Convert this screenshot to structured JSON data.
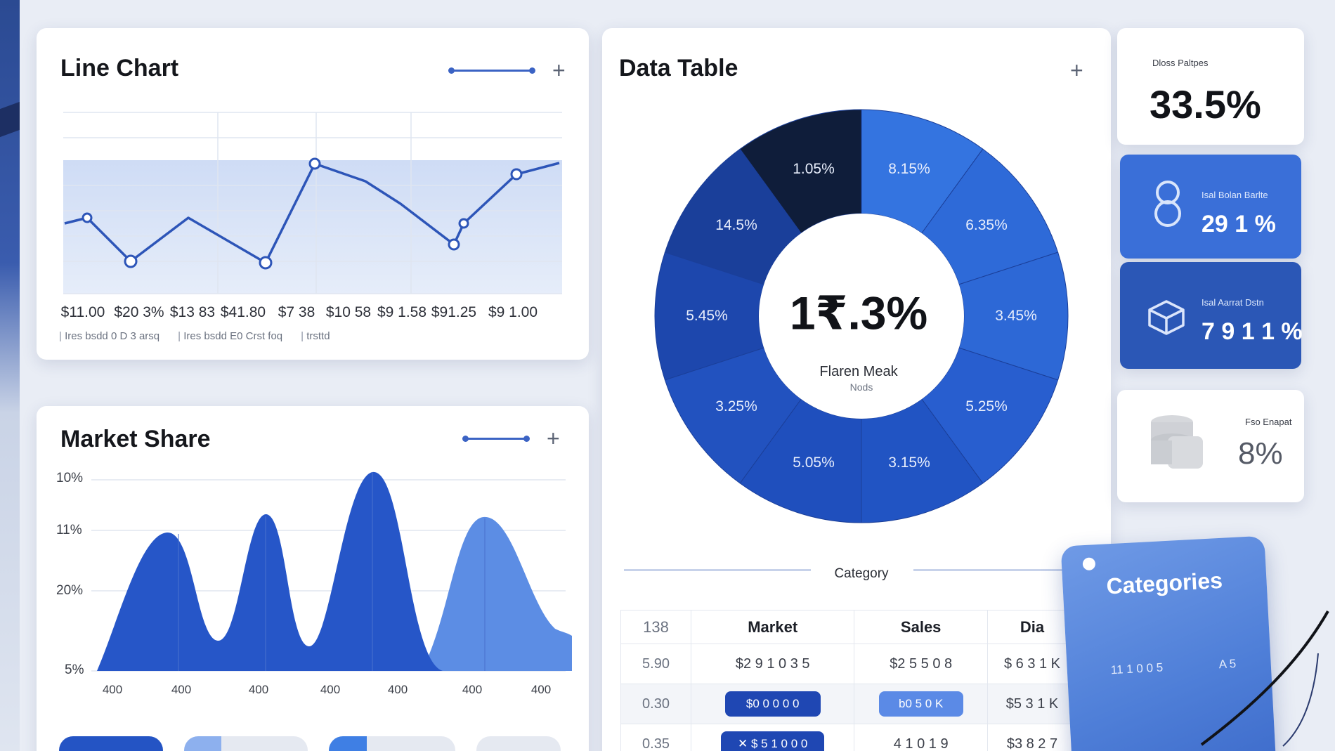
{
  "line_chart": {
    "title": "Line Chart",
    "x_labels": [
      "$11.00",
      "$20 3%",
      "$13 83",
      "$41.80",
      "$7 38",
      "$10 58",
      "$9 1.58",
      "$91.25",
      "$9 1.00"
    ],
    "legend": [
      "Ires bsdd 0 D 3 arsq",
      "Ires bsdd E0 Crst foq",
      "trsttd"
    ]
  },
  "market_share": {
    "title": "Market Share",
    "y_labels": [
      "10%",
      "11%",
      "20%",
      "5%"
    ],
    "x_labels": [
      "400",
      "400",
      "400",
      "400",
      "400",
      "400",
      "400"
    ]
  },
  "data_table": {
    "title": "Data Table",
    "donut_center_value": "1₹.3%",
    "donut_center_label": "Flaren Meak",
    "donut_center_sub": "Nods",
    "slices": [
      {
        "label": "8.15%",
        "color": "#3474e0"
      },
      {
        "label": "6.35%",
        "color": "#2e6ad8"
      },
      {
        "label": "3.45%",
        "color": "#2d68d6"
      },
      {
        "label": "5.25%",
        "color": "#285ecf"
      },
      {
        "label": "3.15%",
        "color": "#2154c3"
      },
      {
        "label": "5.05%",
        "color": "#1f4fbd"
      },
      {
        "label": "3.25%",
        "color": "#2252bf"
      },
      {
        "label": "5.45%",
        "color": "#1d47ad"
      },
      {
        "label": "14.5%",
        "color": "#1a3f9a"
      },
      {
        "label": "1.05%",
        "color": "#0f1d3a"
      }
    ],
    "category_label": "Category",
    "table": {
      "headers": [
        "138",
        "Market",
        "Sales",
        "Dia"
      ],
      "rows": [
        {
          "c0": "5.90",
          "c1": "$2 9 1 0 3 5",
          "c2": "$2 5 5 0 8",
          "c3": "$ 6 3 1 K"
        },
        {
          "c0": "0.30",
          "c1": "$0 0 0 0 0",
          "c2": "b0 5 0 K",
          "c3": "$5 3 1 K"
        },
        {
          "c0": "0.35",
          "c1": "✕ $ 5 1 0 0 0",
          "c2": "4 1 0 1 9",
          "c3": "$3 8 2 7"
        }
      ]
    }
  },
  "kpis": [
    {
      "label": "Dloss Paltpes",
      "value": "33.5%"
    },
    {
      "label": "Isal Bolan Barlte",
      "value": "29 1 %"
    },
    {
      "label": "Isal Aarrat Dstn",
      "value": "7 9 1 1 %"
    },
    {
      "label": "Fso Enapat",
      "value": "8%"
    }
  ],
  "categories_tag": {
    "title": "Categories",
    "sub_left": "11 1 0 0 5",
    "sub_right": "A 5"
  },
  "icons": [
    "plus-icon",
    "digit-8-icon",
    "box-icon",
    "coin-stack-icon"
  ],
  "colors": {
    "accent": "#3b63c4",
    "background": "#e9edf5"
  }
}
